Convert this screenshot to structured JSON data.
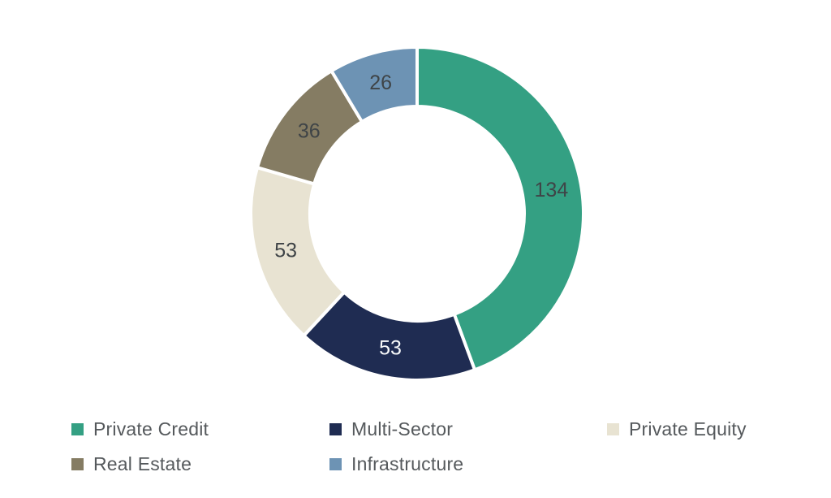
{
  "chart_data": {
    "type": "pie",
    "subtype": "donut",
    "title": "",
    "categories": [
      "Private Credit",
      "Multi-Sector",
      "Private Equity",
      "Real Estate",
      "Infrastructure"
    ],
    "values": [
      134,
      53,
      53,
      36,
      26
    ],
    "data_labels": [
      "134",
      "53",
      "53",
      "36",
      "26"
    ],
    "colors": [
      "#34A083",
      "#1F2C52",
      "#E8E3D2",
      "#857C63",
      "#6D93B4"
    ],
    "label_colors": [
      "#3F4447",
      "#F7F9FA",
      "#3F4447",
      "#3F4447",
      "#3F4447"
    ],
    "total": 302,
    "start_angle_deg": 0,
    "direction": "clockwise",
    "slice_border_color": "#FFFFFF",
    "legend_position": "bottom",
    "legend_text_color": "#55595C"
  }
}
